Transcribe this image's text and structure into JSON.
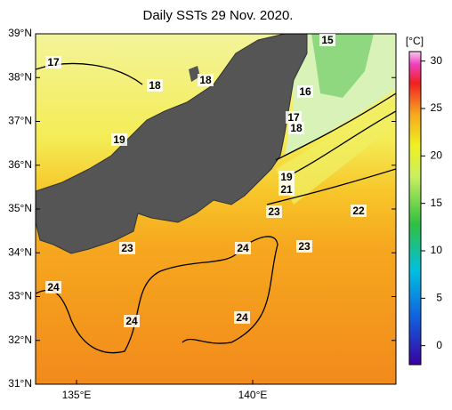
{
  "title": "Daily SSTs 29 Nov. 2020.",
  "lat_ticks": [
    "39°N",
    "38°N",
    "37°N",
    "36°N",
    "35°N",
    "34°N",
    "33°N",
    "32°N",
    "31°N"
  ],
  "lon_ticks": [
    "135°E",
    "140°E"
  ],
  "colorbar": {
    "unit": "[°C]",
    "range": [
      -2,
      31
    ],
    "ticks": [
      30,
      25,
      20,
      15,
      10,
      5,
      0
    ]
  },
  "contour_labels": [
    15,
    17,
    18,
    18,
    16,
    17,
    18,
    19,
    19,
    21,
    23,
    22,
    23,
    24,
    23,
    24,
    24,
    24
  ]
}
